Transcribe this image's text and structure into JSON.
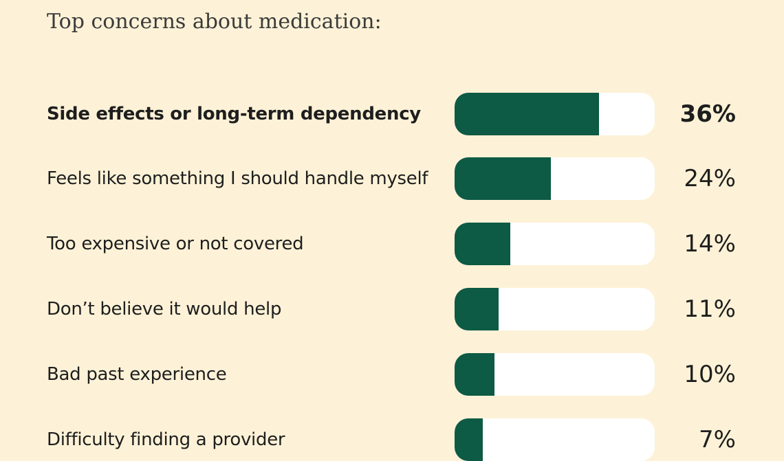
{
  "chart_data": {
    "type": "bar",
    "title": "Top concerns about medication:",
    "categories": [
      "Side effects or long-term dependency",
      "Feels like something I should handle myself",
      "Too expensive or not covered",
      "Don’t believe it would help",
      "Bad past experience",
      "Difficulty finding a provider"
    ],
    "values": [
      36,
      24,
      14,
      11,
      10,
      7
    ],
    "value_labels": [
      "36%",
      "24%",
      "14%",
      "11%",
      "10%",
      "7%"
    ],
    "xlim": [
      0,
      50
    ],
    "highlighted_index": 0,
    "xlabel": "",
    "ylabel": ""
  },
  "colors": {
    "background": "#fdf2d7",
    "bar_fill": "#0d5a45",
    "bar_track": "#ffffff",
    "text": "#1e1e1e"
  }
}
